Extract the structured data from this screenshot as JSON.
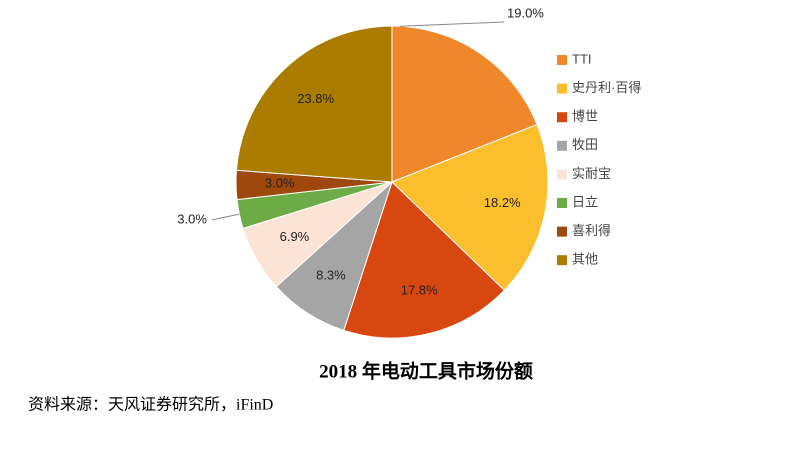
{
  "chart_data": {
    "type": "pie",
    "title": "2018 年电动工具市场份额",
    "source": "资料来源：天风证券研究所，iFinD",
    "categories": [
      "TTI",
      "史丹利·百得",
      "博世",
      "牧田",
      "实耐宝",
      "日立",
      "喜利得",
      "其他"
    ],
    "values": [
      19.0,
      18.2,
      17.8,
      8.3,
      6.9,
      3.0,
      3.0,
      23.8
    ],
    "value_labels": [
      "19.0%",
      "18.2%",
      "17.8%",
      "8.3%",
      "6.9%",
      "3.0%",
      "3.0%",
      "23.8%"
    ],
    "colors": [
      "#f0882b",
      "#fbbe2c",
      "#d8470f",
      "#a5a5a5",
      "#fbe4d5",
      "#6cab45",
      "#9e480e",
      "#ab7c00"
    ],
    "legend": "right"
  }
}
